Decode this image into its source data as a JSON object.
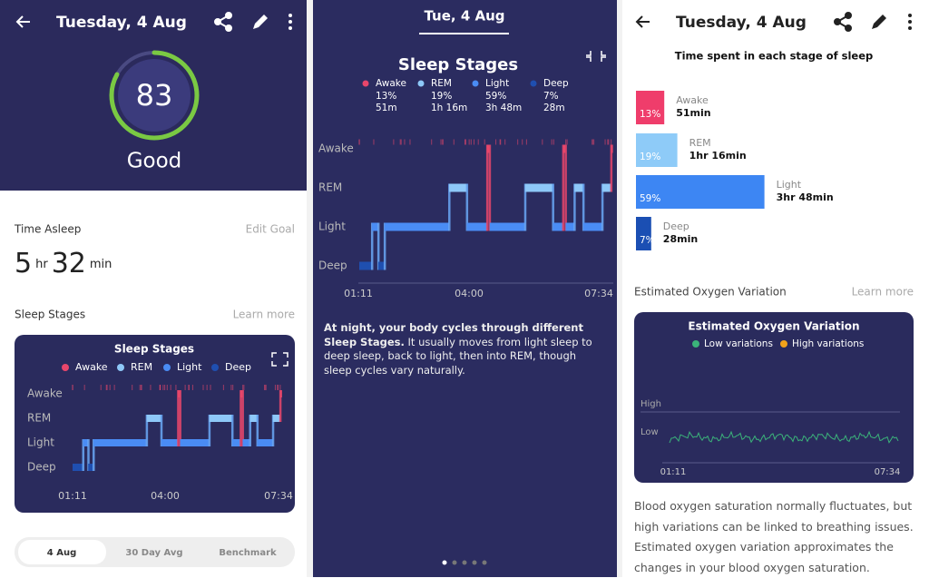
{
  "score_screen": {
    "header_title": "Tuesday, 4 Aug",
    "score": 83,
    "rating": "Good",
    "time_asleep_label": "Time Asleep",
    "edit_goal": "Edit Goal",
    "hours": "5",
    "hr_unit": "hr",
    "minutes": "32",
    "min_unit": "min",
    "sleep_stages_label": "Sleep Stages",
    "learn_more": "Learn more",
    "card": {
      "title": "Sleep Stages",
      "legend": [
        "Awake",
        "REM",
        "Light",
        "Deep"
      ],
      "y_labels": [
        "Awake",
        "REM",
        "Light",
        "Deep"
      ],
      "x_labels": [
        "01:11",
        "04:00",
        "07:34"
      ]
    },
    "tabs": [
      "4 Aug",
      "30 Day Avg",
      "Benchmark"
    ]
  },
  "detail_screen": {
    "title": "Tue, 4 Aug",
    "chart_title": "Sleep Stages",
    "legend": [
      {
        "name": "Awake",
        "percent": "13%",
        "duration": "51m"
      },
      {
        "name": "REM",
        "percent": "19%",
        "duration": "1h 16m"
      },
      {
        "name": "Light",
        "percent": "59%",
        "duration": "3h 48m"
      },
      {
        "name": "Deep",
        "percent": "7%",
        "duration": "28m"
      }
    ],
    "y_labels": [
      "Awake",
      "REM",
      "Light",
      "Deep"
    ],
    "x_labels": [
      "01:11",
      "04:00",
      "07:34"
    ],
    "description_bold": "At night, your body cycles through different Sleep Stages.",
    "description": " It usually moves from light sleep to deep sleep, back to light, then into REM, though sleep cycles vary naturally."
  },
  "stages_screen": {
    "header_title": "Tuesday, 4 Aug",
    "section_title": "Time spent in each stage of sleep",
    "stages": [
      {
        "name": "Awake",
        "percent": 13,
        "percent_label": "13%",
        "duration": "51min"
      },
      {
        "name": "REM",
        "percent": 19,
        "percent_label": "19%",
        "duration": "1hr 16min"
      },
      {
        "name": "Light",
        "percent": 59,
        "percent_label": "59%",
        "duration": "3hr 48min"
      },
      {
        "name": "Deep",
        "percent": 7,
        "percent_label": "7%",
        "duration": "28min"
      }
    ],
    "oxygen_label": "Estimated Oxygen Variation",
    "learn_more": "Learn more",
    "oxygen_card": {
      "title": "Estimated Oxygen Variation",
      "legend": [
        "Low variations",
        "High variations"
      ],
      "y_labels": [
        "High",
        "Low"
      ],
      "x_labels": [
        "01:11",
        "07:34"
      ]
    },
    "paragraph": "Blood oxygen saturation normally fluctuates, but high variations can be linked to breathing issues. Estimated oxygen variation approximates the changes in your blood oxygen saturation."
  }
}
